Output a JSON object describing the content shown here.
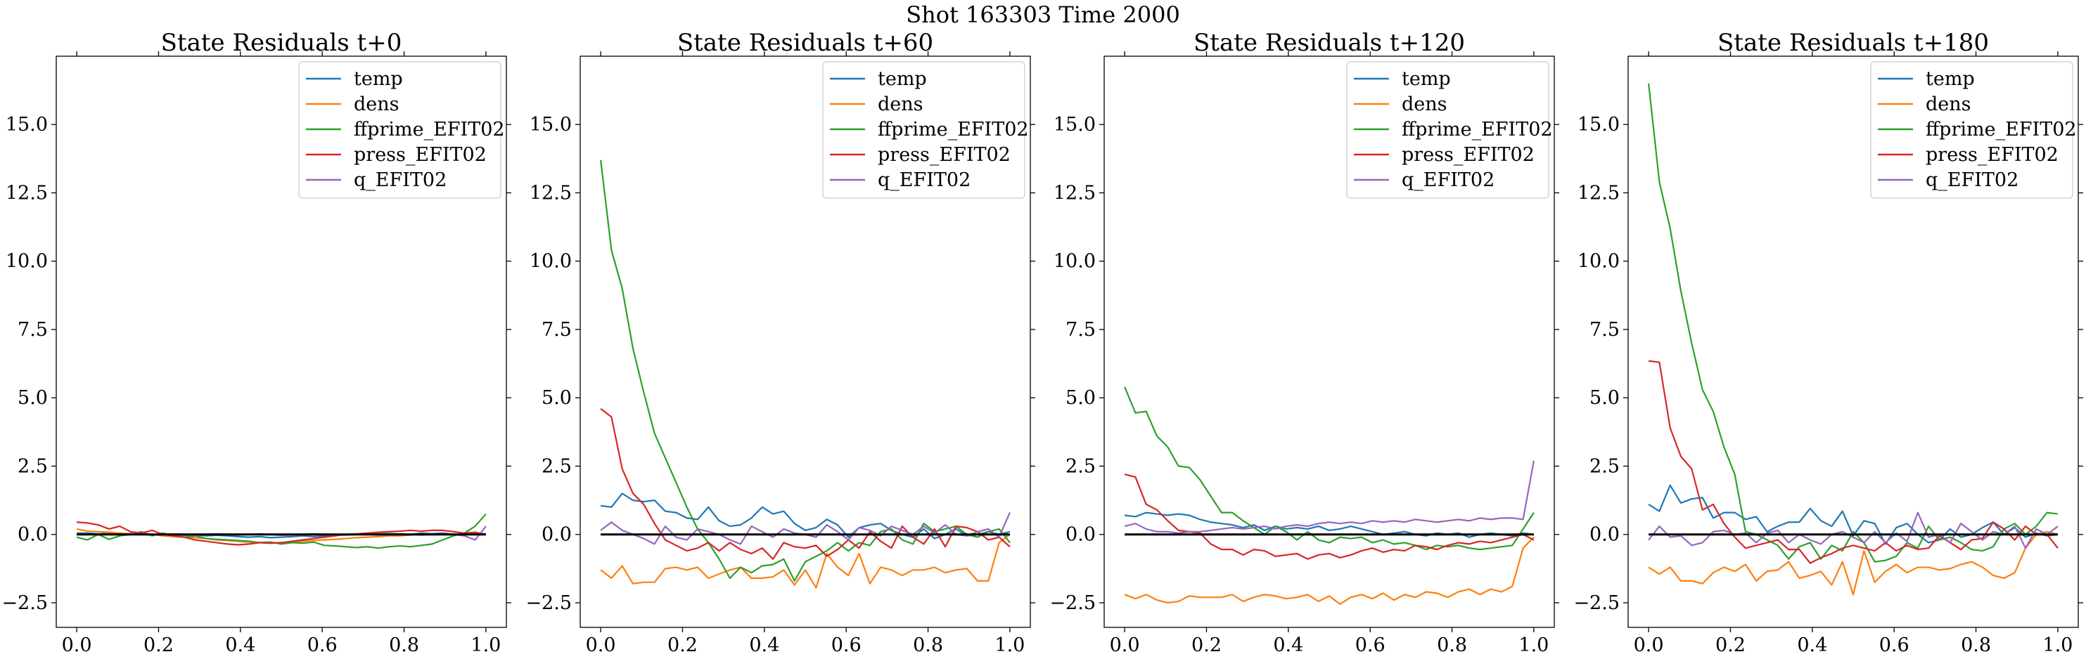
{
  "figure": {
    "suptitle": "Shot 163303   Time 2000"
  },
  "chart_data": [
    {
      "type": "line",
      "title": "State Residuals t+0",
      "xlim": [
        -0.05,
        1.05
      ],
      "ylim": [
        -3.4,
        17.5
      ],
      "xticks": [
        "0.0",
        "0.2",
        "0.4",
        "0.6",
        "0.8",
        "1.0"
      ],
      "yticks": [
        "−2.5",
        "0.0",
        "2.5",
        "5.0",
        "7.5",
        "10.0",
        "12.5",
        "15.0"
      ],
      "legend_position": "upper right",
      "grid": false,
      "zero_line": true,
      "series": [
        {
          "name": "temp",
          "color": "#1f77b4",
          "values": [
            0.05,
            0.05,
            0.02,
            0.05,
            0.03,
            0.0,
            0.02,
            -0.02,
            0.02,
            0.0,
            -0.03,
            -0.02,
            -0.05,
            -0.03,
            -0.05,
            -0.08,
            -0.1,
            -0.08,
            -0.12,
            -0.1,
            -0.08,
            -0.05,
            -0.08,
            -0.05,
            -0.02,
            -0.02,
            0.0,
            0.0,
            0.02,
            0.03,
            0.02,
            0.0,
            0.05,
            0.03,
            0.05,
            0.0,
            -0.02,
            0.05,
            0.02
          ]
        },
        {
          "name": "dens",
          "color": "#ff7f0e",
          "values": [
            0.2,
            0.12,
            0.1,
            0.08,
            0.05,
            0.02,
            0.05,
            0.0,
            -0.05,
            -0.08,
            -0.1,
            -0.12,
            -0.15,
            -0.2,
            -0.22,
            -0.25,
            -0.28,
            -0.3,
            -0.32,
            -0.3,
            -0.28,
            -0.25,
            -0.22,
            -0.2,
            -0.18,
            -0.15,
            -0.12,
            -0.1,
            -0.08,
            -0.05,
            -0.05,
            -0.02,
            0.0,
            0.02,
            0.0,
            -0.02,
            0.0,
            0.05,
            0.02
          ]
        },
        {
          "name": "ffprime_EFIT02",
          "color": "#2ca02c",
          "values": [
            -0.1,
            -0.2,
            0.0,
            -0.18,
            -0.05,
            0.0,
            0.1,
            -0.05,
            0.05,
            -0.05,
            -0.1,
            -0.05,
            -0.15,
            -0.18,
            -0.2,
            -0.22,
            -0.25,
            -0.3,
            -0.28,
            -0.35,
            -0.3,
            -0.32,
            -0.28,
            -0.4,
            -0.42,
            -0.45,
            -0.48,
            -0.45,
            -0.5,
            -0.45,
            -0.42,
            -0.45,
            -0.4,
            -0.35,
            -0.2,
            -0.05,
            0.05,
            0.3,
            0.75
          ]
        },
        {
          "name": "press_EFIT02",
          "color": "#d62728",
          "values": [
            0.45,
            0.42,
            0.35,
            0.2,
            0.3,
            0.1,
            0.05,
            0.15,
            0.0,
            -0.05,
            -0.1,
            -0.2,
            -0.25,
            -0.3,
            -0.35,
            -0.38,
            -0.35,
            -0.3,
            -0.32,
            -0.3,
            -0.25,
            -0.2,
            -0.15,
            -0.1,
            -0.05,
            0.0,
            0.02,
            0.05,
            0.08,
            0.1,
            0.12,
            0.15,
            0.12,
            0.15,
            0.15,
            0.1,
            0.05,
            0.08,
            0.0
          ]
        },
        {
          "name": "q_EFIT02",
          "color": "#9467bd",
          "values": [
            0.0,
            0.0,
            0.02,
            0.0,
            0.0,
            0.03,
            0.0,
            -0.02,
            0.0,
            0.02,
            0.0,
            -0.03,
            0.0,
            0.02,
            0.0,
            -0.02,
            0.0,
            0.02,
            0.0,
            -0.03,
            -0.02,
            0.0,
            0.02,
            0.0,
            -0.02,
            0.0,
            0.02,
            0.0,
            -0.02,
            0.0,
            0.02,
            0.0,
            -0.02,
            0.0,
            0.02,
            0.0,
            -0.05,
            -0.2,
            0.3
          ]
        }
      ]
    },
    {
      "type": "line",
      "title": "State Residuals t+60",
      "xlim": [
        -0.05,
        1.05
      ],
      "ylim": [
        -3.4,
        17.5
      ],
      "xticks": [
        "0.0",
        "0.2",
        "0.4",
        "0.6",
        "0.8",
        "1.0"
      ],
      "yticks": [
        "−2.5",
        "0.0",
        "2.5",
        "5.0",
        "7.5",
        "10.0",
        "12.5",
        "15.0"
      ],
      "legend_position": "upper right",
      "grid": false,
      "zero_line": true,
      "series": [
        {
          "name": "temp",
          "color": "#1f77b4",
          "values": [
            1.05,
            1.0,
            1.5,
            1.25,
            1.2,
            1.25,
            0.85,
            0.8,
            0.6,
            0.55,
            1.0,
            0.5,
            0.3,
            0.35,
            0.6,
            1.0,
            0.75,
            0.85,
            0.4,
            0.15,
            0.25,
            0.55,
            0.35,
            -0.1,
            0.25,
            0.35,
            0.4,
            0.15,
            0.0,
            -0.1,
            0.2,
            -0.15,
            0.0,
            0.2,
            -0.05,
            0.0,
            0.1,
            0.0,
            0.1
          ]
        },
        {
          "name": "dens",
          "color": "#ff7f0e",
          "values": [
            -1.3,
            -1.6,
            -1.15,
            -1.8,
            -1.75,
            -1.75,
            -1.25,
            -1.2,
            -1.3,
            -1.2,
            -1.6,
            -1.45,
            -1.3,
            -1.2,
            -1.6,
            -1.6,
            -1.55,
            -1.3,
            -1.85,
            -1.3,
            -1.95,
            -0.7,
            -1.2,
            -1.5,
            -0.7,
            -1.8,
            -1.2,
            -1.3,
            -1.5,
            -1.3,
            -1.3,
            -1.2,
            -1.4,
            -1.3,
            -1.25,
            -1.7,
            -1.7,
            -0.3,
            0.0
          ]
        },
        {
          "name": "ffprime_EFIT02",
          "color": "#2ca02c",
          "values": [
            13.7,
            10.4,
            9.0,
            6.8,
            5.2,
            3.7,
            2.8,
            1.9,
            1.0,
            0.2,
            -0.3,
            -0.9,
            -1.6,
            -1.2,
            -1.4,
            -1.15,
            -1.1,
            -0.9,
            -1.7,
            -1.0,
            -0.8,
            -0.6,
            -0.3,
            -0.6,
            -0.3,
            -0.4,
            0.1,
            0.2,
            -0.2,
            -0.35,
            0.4,
            0.1,
            0.2,
            0.3,
            0.0,
            -0.1,
            0.1,
            0.2,
            -0.3
          ]
        },
        {
          "name": "press_EFIT02",
          "color": "#d62728",
          "values": [
            4.6,
            4.3,
            2.4,
            1.5,
            1.1,
            0.4,
            -0.2,
            -0.4,
            -0.6,
            -0.5,
            -0.3,
            -0.6,
            -0.3,
            -0.55,
            -0.7,
            -0.5,
            -0.9,
            -0.3,
            -0.45,
            -0.5,
            -0.4,
            -0.8,
            -0.55,
            -0.2,
            -0.5,
            0.1,
            -0.25,
            -0.5,
            0.3,
            -0.1,
            -0.35,
            0.2,
            -0.45,
            0.3,
            0.25,
            0.1,
            -0.2,
            -0.1,
            -0.45
          ]
        },
        {
          "name": "q_EFIT02",
          "color": "#9467bd",
          "values": [
            0.15,
            0.45,
            0.15,
            0.0,
            -0.15,
            -0.35,
            0.3,
            -0.1,
            -0.2,
            0.2,
            0.1,
            0.0,
            -0.2,
            -0.35,
            0.3,
            0.1,
            -0.1,
            0.2,
            0.05,
            0.0,
            -0.1,
            0.35,
            0.1,
            -0.2,
            0.25,
            0.15,
            -0.05,
            0.3,
            0.15,
            0.0,
            0.3,
            0.05,
            0.35,
            0.0,
            -0.05,
            0.1,
            0.2,
            -0.1,
            0.8
          ]
        }
      ]
    },
    {
      "type": "line",
      "title": "State Residuals t+120",
      "xlim": [
        -0.05,
        1.05
      ],
      "ylim": [
        -3.4,
        17.5
      ],
      "xticks": [
        "0.0",
        "0.2",
        "0.4",
        "0.6",
        "0.8",
        "1.0"
      ],
      "yticks": [
        "−2.5",
        "0.0",
        "2.5",
        "5.0",
        "7.5",
        "10.0",
        "12.5",
        "15.0"
      ],
      "legend_position": "upper right",
      "grid": false,
      "zero_line": true,
      "series": [
        {
          "name": "temp",
          "color": "#1f77b4",
          "values": [
            0.7,
            0.65,
            0.8,
            0.75,
            0.7,
            0.75,
            0.7,
            0.55,
            0.45,
            0.4,
            0.35,
            0.25,
            0.35,
            0.15,
            0.3,
            0.2,
            0.25,
            0.2,
            0.3,
            0.15,
            0.2,
            0.3,
            0.2,
            0.1,
            0.0,
            0.05,
            0.1,
            0.0,
            -0.05,
            0.05,
            0.0,
            0.05,
            -0.1,
            0.0,
            0.05,
            0.0,
            -0.05,
            0.05,
            0.0
          ]
        },
        {
          "name": "dens",
          "color": "#ff7f0e",
          "values": [
            -2.2,
            -2.35,
            -2.2,
            -2.4,
            -2.5,
            -2.45,
            -2.25,
            -2.3,
            -2.3,
            -2.3,
            -2.2,
            -2.45,
            -2.3,
            -2.2,
            -2.25,
            -2.35,
            -2.3,
            -2.2,
            -2.45,
            -2.25,
            -2.55,
            -2.3,
            -2.2,
            -2.35,
            -2.15,
            -2.4,
            -2.2,
            -2.3,
            -2.1,
            -2.15,
            -2.3,
            -2.1,
            -2.0,
            -2.2,
            -2.0,
            -2.1,
            -1.9,
            -0.5,
            -0.1
          ]
        },
        {
          "name": "ffprime_EFIT02",
          "color": "#2ca02c",
          "values": [
            5.4,
            4.45,
            4.5,
            3.6,
            3.2,
            2.5,
            2.45,
            2.0,
            1.4,
            0.8,
            0.8,
            0.5,
            0.25,
            0.0,
            0.3,
            0.1,
            -0.2,
            0.1,
            -0.2,
            -0.3,
            -0.1,
            -0.15,
            -0.1,
            -0.3,
            -0.2,
            -0.35,
            -0.3,
            -0.4,
            -0.55,
            -0.4,
            -0.45,
            -0.4,
            -0.5,
            -0.55,
            -0.5,
            -0.45,
            -0.4,
            0.2,
            0.8
          ]
        },
        {
          "name": "press_EFIT02",
          "color": "#d62728",
          "values": [
            2.2,
            2.1,
            1.1,
            0.9,
            0.5,
            0.15,
            0.1,
            0.05,
            -0.35,
            -0.55,
            -0.55,
            -0.75,
            -0.55,
            -0.6,
            -0.8,
            -0.75,
            -0.7,
            -0.9,
            -0.75,
            -0.7,
            -0.85,
            -0.75,
            -0.6,
            -0.5,
            -0.65,
            -0.55,
            -0.6,
            -0.4,
            -0.45,
            -0.55,
            -0.4,
            -0.3,
            -0.35,
            -0.25,
            -0.3,
            -0.2,
            -0.1,
            0.0,
            -0.2
          ]
        },
        {
          "name": "q_EFIT02",
          "color": "#9467bd",
          "values": [
            0.3,
            0.4,
            0.2,
            0.1,
            0.1,
            0.05,
            0.1,
            0.1,
            0.15,
            0.2,
            0.25,
            0.2,
            0.25,
            0.3,
            0.2,
            0.3,
            0.35,
            0.3,
            0.4,
            0.45,
            0.4,
            0.45,
            0.4,
            0.5,
            0.45,
            0.5,
            0.45,
            0.55,
            0.5,
            0.45,
            0.5,
            0.55,
            0.5,
            0.6,
            0.55,
            0.6,
            0.6,
            0.55,
            2.7
          ]
        }
      ]
    },
    {
      "type": "line",
      "title": "State Residuals t+180",
      "xlim": [
        -0.05,
        1.05
      ],
      "ylim": [
        -3.4,
        17.5
      ],
      "xticks": [
        "0.0",
        "0.2",
        "0.4",
        "0.6",
        "0.8",
        "1.0"
      ],
      "yticks": [
        "−2.5",
        "0.0",
        "2.5",
        "5.0",
        "7.5",
        "10.0",
        "12.5",
        "15.0"
      ],
      "legend_position": "upper right",
      "grid": false,
      "zero_line": true,
      "series": [
        {
          "name": "temp",
          "color": "#1f77b4",
          "values": [
            1.1,
            0.85,
            1.8,
            1.15,
            1.3,
            1.35,
            0.6,
            0.8,
            0.8,
            0.55,
            0.65,
            0.1,
            0.3,
            0.45,
            0.45,
            0.95,
            0.5,
            0.3,
            0.85,
            -0.05,
            0.5,
            0.4,
            -0.35,
            0.25,
            0.4,
            0.0,
            -0.3,
            -0.2,
            0.2,
            -0.1,
            0.0,
            0.25,
            0.45,
            0.0,
            0.25,
            -0.1,
            0.05,
            -0.05,
            0.0
          ]
        },
        {
          "name": "dens",
          "color": "#ff7f0e",
          "values": [
            -1.2,
            -1.45,
            -1.2,
            -1.7,
            -1.7,
            -1.8,
            -1.4,
            -1.2,
            -1.35,
            -1.1,
            -1.7,
            -1.35,
            -1.3,
            -1.0,
            -1.6,
            -1.5,
            -1.35,
            -1.85,
            -1.0,
            -2.2,
            -0.6,
            -1.75,
            -1.35,
            -1.1,
            -1.4,
            -1.2,
            -1.2,
            -1.3,
            -1.25,
            -1.1,
            -1.0,
            -1.2,
            -1.5,
            -1.6,
            -1.4,
            -0.5,
            0.0,
            0.1,
            0.0
          ]
        },
        {
          "name": "ffprime_EFIT02",
          "color": "#2ca02c",
          "values": [
            16.5,
            12.9,
            11.2,
            8.9,
            7.0,
            5.3,
            4.5,
            3.2,
            2.2,
            0.1,
            0.0,
            -0.2,
            -0.4,
            -0.9,
            -0.45,
            -0.3,
            -0.9,
            -0.4,
            -0.6,
            0.1,
            -0.3,
            -1.0,
            -0.95,
            -0.8,
            -0.3,
            -0.5,
            0.3,
            -0.2,
            -0.1,
            -0.3,
            -0.55,
            -0.6,
            -0.45,
            0.2,
            0.4,
            0.0,
            0.3,
            0.8,
            0.75
          ]
        },
        {
          "name": "press_EFIT02",
          "color": "#d62728",
          "values": [
            6.35,
            6.3,
            3.9,
            2.85,
            2.4,
            0.9,
            1.1,
            0.4,
            -0.1,
            -0.5,
            -0.4,
            -0.3,
            -0.2,
            -0.55,
            -0.55,
            -1.05,
            -0.85,
            -0.7,
            -0.5,
            -0.4,
            -0.5,
            -0.6,
            -0.3,
            -0.6,
            -0.4,
            -0.55,
            -0.5,
            -0.05,
            -0.3,
            -0.55,
            -0.2,
            -0.15,
            0.45,
            0.2,
            -0.2,
            0.3,
            0.0,
            0.0,
            -0.5
          ]
        },
        {
          "name": "q_EFIT02",
          "color": "#9467bd",
          "values": [
            -0.2,
            0.3,
            -0.1,
            -0.05,
            -0.4,
            -0.3,
            0.1,
            0.15,
            0.0,
            0.05,
            -0.3,
            0.05,
            0.15,
            -0.3,
            0.0,
            -0.2,
            -0.35,
            0.0,
            0.1,
            -0.1,
            -0.3,
            0.1,
            -0.3,
            0.05,
            -0.25,
            0.8,
            -0.1,
            0.0,
            -0.3,
            0.4,
            0.1,
            -0.2,
            0.1,
            0.0,
            0.3,
            -0.5,
            0.2,
            0.0,
            0.3
          ]
        }
      ]
    }
  ]
}
